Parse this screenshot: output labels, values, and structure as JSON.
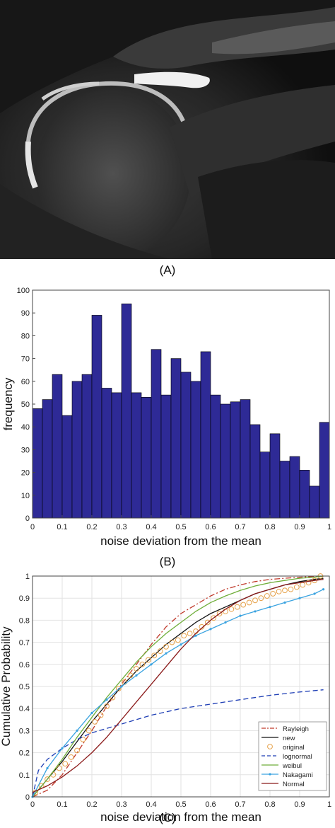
{
  "panels": {
    "a_label": "(A)",
    "b_label": "(B)",
    "c_label": "(C)"
  },
  "image": {
    "description_icon": "mri-shoulder-image"
  },
  "chart_data": [
    {
      "type": "bar",
      "xlabel": "noise deviation from the mean",
      "ylabel": "frequency",
      "xlim": [
        0,
        1
      ],
      "ylim": [
        0,
        100
      ],
      "xticks": [
        "0",
        "0.1",
        "0.2",
        "0.3",
        "0.4",
        "0.5",
        "0.6",
        "0.7",
        "0.8",
        "0.9",
        "1"
      ],
      "yticks": [
        "0",
        "10",
        "20",
        "30",
        "40",
        "50",
        "60",
        "70",
        "80",
        "90",
        "100"
      ],
      "bar_color": "#2e2a96",
      "bin_width": 0.0333,
      "values": [
        48,
        52,
        63,
        45,
        60,
        63,
        89,
        57,
        55,
        94,
        55,
        53,
        74,
        54,
        70,
        64,
        60,
        73,
        54,
        50,
        51,
        52,
        41,
        29,
        37,
        25,
        27,
        21,
        14,
        42
      ]
    },
    {
      "type": "line",
      "xlabel": "noise deviation from the mean",
      "ylabel": "Cumulative Probability",
      "xlim": [
        0,
        1
      ],
      "ylim": [
        0,
        1
      ],
      "grid": true,
      "legend_position": "bottom-right",
      "xticks": [
        "0",
        "0.1",
        "0.2",
        "0.3",
        "0.4",
        "0.5",
        "0.6",
        "0.7",
        "0.8",
        "0.9",
        "1"
      ],
      "yticks": [
        "0",
        "0.1",
        "0.2",
        "0.3",
        "0.4",
        "0.5",
        "0.6",
        "0.7",
        "0.8",
        "0.9",
        "1"
      ],
      "series": [
        {
          "name": "Rayleigh",
          "color": "#c0392b",
          "style": "dashdot",
          "x": [
            0,
            0.05,
            0.1,
            0.15,
            0.2,
            0.25,
            0.3,
            0.35,
            0.4,
            0.45,
            0.5,
            0.55,
            0.6,
            0.65,
            0.7,
            0.75,
            0.8,
            0.85,
            0.9,
            0.95,
            0.98
          ],
          "y": [
            0,
            0.03,
            0.1,
            0.2,
            0.3,
            0.41,
            0.51,
            0.6,
            0.69,
            0.77,
            0.83,
            0.87,
            0.91,
            0.94,
            0.96,
            0.975,
            0.985,
            0.99,
            0.995,
            0.998,
            1.0
          ]
        },
        {
          "name": "new",
          "color": "#111111",
          "style": "solid",
          "x": [
            0,
            0.05,
            0.1,
            0.15,
            0.2,
            0.25,
            0.3,
            0.35,
            0.4,
            0.45,
            0.5,
            0.55,
            0.6,
            0.65,
            0.7,
            0.75,
            0.8,
            0.85,
            0.9,
            0.95,
            0.98
          ],
          "y": [
            0,
            0.08,
            0.16,
            0.25,
            0.34,
            0.42,
            0.5,
            0.57,
            0.63,
            0.69,
            0.74,
            0.79,
            0.83,
            0.86,
            0.89,
            0.92,
            0.94,
            0.96,
            0.975,
            0.985,
            0.99
          ]
        },
        {
          "name": "original",
          "color": "#e6a24a",
          "style": "markers",
          "x": [
            0.01,
            0.03,
            0.05,
            0.07,
            0.09,
            0.11,
            0.13,
            0.15,
            0.17,
            0.19,
            0.21,
            0.23,
            0.25,
            0.27,
            0.29,
            0.31,
            0.33,
            0.35,
            0.37,
            0.39,
            0.41,
            0.43,
            0.45,
            0.47,
            0.49,
            0.51,
            0.53,
            0.55,
            0.57,
            0.59,
            0.61,
            0.63,
            0.65,
            0.67,
            0.69,
            0.71,
            0.73,
            0.75,
            0.77,
            0.79,
            0.81,
            0.83,
            0.85,
            0.87,
            0.89,
            0.91,
            0.93,
            0.95,
            0.97
          ],
          "y": [
            0.02,
            0.05,
            0.08,
            0.1,
            0.13,
            0.15,
            0.18,
            0.21,
            0.26,
            0.3,
            0.34,
            0.37,
            0.41,
            0.45,
            0.49,
            0.52,
            0.55,
            0.58,
            0.6,
            0.62,
            0.64,
            0.66,
            0.68,
            0.7,
            0.71,
            0.73,
            0.74,
            0.75,
            0.77,
            0.79,
            0.81,
            0.83,
            0.84,
            0.85,
            0.86,
            0.87,
            0.88,
            0.89,
            0.9,
            0.91,
            0.92,
            0.93,
            0.935,
            0.94,
            0.95,
            0.96,
            0.97,
            0.98,
            1.0
          ]
        },
        {
          "name": "lognormal",
          "color": "#1f3fb5",
          "style": "dashed",
          "x": [
            0,
            0.02,
            0.05,
            0.1,
            0.15,
            0.2,
            0.3,
            0.4,
            0.5,
            0.6,
            0.7,
            0.8,
            0.9,
            0.98
          ],
          "y": [
            0,
            0.12,
            0.17,
            0.22,
            0.26,
            0.29,
            0.33,
            0.37,
            0.4,
            0.42,
            0.44,
            0.46,
            0.475,
            0.485
          ]
        },
        {
          "name": "weibul",
          "color": "#6fae3a",
          "style": "solid",
          "x": [
            0,
            0.05,
            0.1,
            0.15,
            0.2,
            0.25,
            0.3,
            0.35,
            0.4,
            0.45,
            0.5,
            0.55,
            0.6,
            0.65,
            0.7,
            0.75,
            0.8,
            0.85,
            0.9,
            0.95,
            0.98
          ],
          "y": [
            0,
            0.08,
            0.17,
            0.27,
            0.36,
            0.45,
            0.53,
            0.61,
            0.68,
            0.74,
            0.79,
            0.84,
            0.88,
            0.91,
            0.935,
            0.955,
            0.97,
            0.98,
            0.99,
            0.995,
            1.0
          ]
        },
        {
          "name": "Nakagami",
          "color": "#3aa3e0",
          "style": "line-markers",
          "x": [
            0,
            0.05,
            0.1,
            0.15,
            0.2,
            0.25,
            0.3,
            0.35,
            0.4,
            0.45,
            0.5,
            0.55,
            0.6,
            0.65,
            0.7,
            0.75,
            0.8,
            0.85,
            0.9,
            0.95,
            0.98
          ],
          "y": [
            0,
            0.13,
            0.22,
            0.3,
            0.38,
            0.44,
            0.5,
            0.55,
            0.6,
            0.65,
            0.69,
            0.73,
            0.76,
            0.79,
            0.82,
            0.84,
            0.86,
            0.88,
            0.9,
            0.92,
            0.94
          ]
        },
        {
          "name": "Normal",
          "color": "#8b1a1a",
          "style": "solid",
          "x": [
            0,
            0.05,
            0.1,
            0.15,
            0.2,
            0.25,
            0.3,
            0.35,
            0.4,
            0.45,
            0.5,
            0.55,
            0.6,
            0.65,
            0.7,
            0.75,
            0.8,
            0.85,
            0.9,
            0.95,
            0.98
          ],
          "y": [
            0.02,
            0.05,
            0.09,
            0.14,
            0.2,
            0.27,
            0.35,
            0.43,
            0.51,
            0.59,
            0.67,
            0.74,
            0.8,
            0.85,
            0.89,
            0.92,
            0.94,
            0.96,
            0.97,
            0.98,
            0.985
          ]
        }
      ]
    }
  ]
}
